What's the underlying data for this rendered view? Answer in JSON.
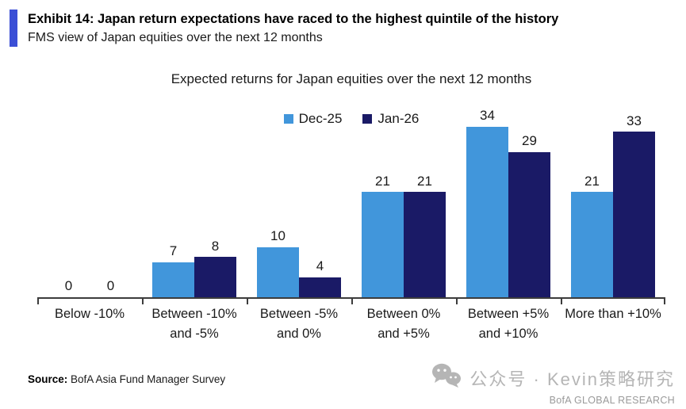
{
  "header": {
    "exhibit_title": "Exhibit 14: Japan return expectations have raced to the highest quintile of the history",
    "subtitle": "FMS view of Japan equities over the next 12 months"
  },
  "chart_data": {
    "type": "bar",
    "title": "Expected returns for Japan equities over the next 12 months",
    "categories": [
      "Below -10%",
      "Between -10% and -5%",
      "Between -5% and 0%",
      "Between 0% and +5%",
      "Between +5% and +10%",
      "More than +10%"
    ],
    "category_labels": [
      "Below -10%",
      "Between -10%\nand -5%",
      "Between -5%\nand 0%",
      "Between 0%\nand +5%",
      "Between +5%\nand +10%",
      "More than +10%"
    ],
    "series": [
      {
        "name": "Dec-25",
        "color": "#4196DB",
        "values": [
          0,
          7,
          10,
          21,
          34,
          21
        ]
      },
      {
        "name": "Jan-26",
        "color": "#1A1A66",
        "values": [
          0,
          8,
          4,
          21,
          29,
          33
        ]
      }
    ],
    "ylim": [
      0,
      34
    ],
    "grid": false,
    "legend_position": "top",
    "value_labels": true,
    "axis_color": "#3C3C3C"
  },
  "footer": {
    "source_label": "Source:",
    "source_text": "BofA Asia Fund Manager Survey",
    "watermark_text": "公众号 · Kevin策略研究",
    "brand": "BofA GLOBAL RESEARCH"
  },
  "colors": {
    "accent_bar": "#3B4FD6",
    "watermark_gray": "#B5B5B5"
  }
}
